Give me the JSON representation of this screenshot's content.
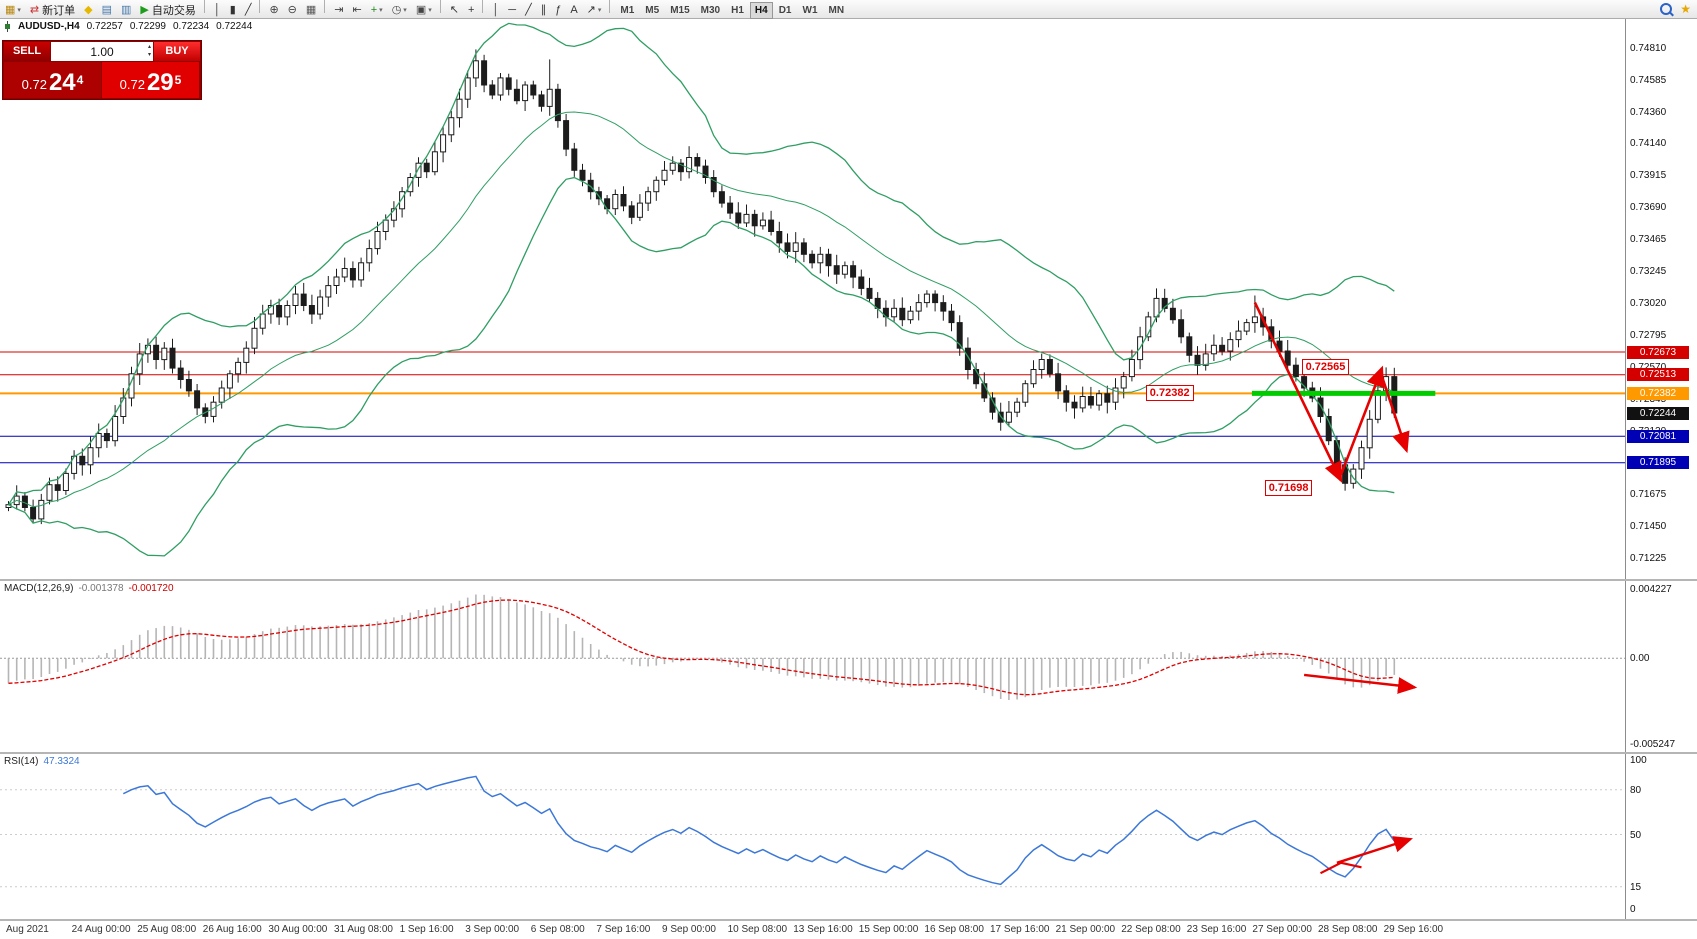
{
  "header": {
    "symbol_period": "AUDUSD-,H4",
    "open": "0.72257",
    "high": "0.72299",
    "low": "0.72234",
    "close": "0.72244"
  },
  "trade_panel": {
    "sell_label": "SELL",
    "buy_label": "BUY",
    "volume": "1.00",
    "sell_price_main": "0.72",
    "sell_price_big": "24",
    "sell_price_sup": "4",
    "buy_price_main": "0.72",
    "buy_price_big": "29",
    "buy_price_sup": "5"
  },
  "toolbar": {
    "items": [
      {
        "name": "new-chart-button",
        "glyph": "▦",
        "color": "#b8860b",
        "caret": true
      },
      {
        "name": "new-order-button",
        "glyph": "⇄",
        "color": "#cc3333",
        "label": "新订单"
      },
      {
        "name": "metaeditor-button",
        "glyph": "◆",
        "color": "#e6b800"
      },
      {
        "name": "market-watch-button",
        "glyph": "▤",
        "color": "#4477aa"
      },
      {
        "name": "data-window-button",
        "glyph": "▥",
        "color": "#4477aa"
      },
      {
        "name": "autotrading-button",
        "glyph": "▶",
        "color": "#1e9c1e",
        "label": "自动交易"
      },
      {
        "sep": true
      },
      {
        "name": "bar-chart-button",
        "glyph": "│",
        "color": "#333"
      },
      {
        "name": "candlestick-button",
        "glyph": "▮",
        "color": "#333"
      },
      {
        "name": "line-chart-button",
        "glyph": "╱",
        "color": "#333"
      },
      {
        "sep": true
      },
      {
        "name": "zoom-in-button",
        "glyph": "⊕",
        "color": "#444"
      },
      {
        "name": "zoom-out-button",
        "glyph": "⊖",
        "color": "#444"
      },
      {
        "name": "tile-windows-button",
        "glyph": "▦",
        "color": "#555"
      },
      {
        "sep": true
      },
      {
        "name": "auto-scroll-button",
        "glyph": "⇥",
        "color": "#444"
      },
      {
        "name": "chart-shift-button",
        "glyph": "⇤",
        "color": "#444"
      },
      {
        "name": "indicators-button",
        "glyph": "+",
        "color": "#1e8a1e",
        "caret": true
      },
      {
        "name": "periods-button",
        "glyph": "◷",
        "color": "#444",
        "caret": true
      },
      {
        "name": "templates-button",
        "glyph": "▣",
        "color": "#444",
        "caret": true
      },
      {
        "sep": true
      },
      {
        "name": "cursor-button",
        "glyph": "↖",
        "color": "#333"
      },
      {
        "name": "crosshair-button",
        "glyph": "+",
        "color": "#333"
      },
      {
        "sep": true
      },
      {
        "name": "vertical-line-button",
        "glyph": "│",
        "color": "#333"
      },
      {
        "name": "horizontal-line-button",
        "glyph": "─",
        "color": "#333"
      },
      {
        "name": "trendline-button",
        "glyph": "╱",
        "color": "#333"
      },
      {
        "name": "channel-button",
        "glyph": "∥",
        "color": "#333"
      },
      {
        "name": "fibonacci-button",
        "glyph": "ƒ",
        "color": "#333"
      },
      {
        "name": "text-button",
        "glyph": "A",
        "color": "#333"
      },
      {
        "name": "arrows-button",
        "glyph": "↗",
        "color": "#333",
        "caret": true
      },
      {
        "sep": true
      }
    ],
    "timeframes": [
      {
        "label": "M1"
      },
      {
        "label": "M5"
      },
      {
        "label": "M15"
      },
      {
        "label": "M30"
      },
      {
        "label": "H1"
      },
      {
        "label": "H4",
        "active": true
      },
      {
        "label": "D1"
      },
      {
        "label": "W1"
      },
      {
        "label": "MN"
      }
    ]
  },
  "chart_data": {
    "type": "candlestick",
    "symbol": "AUDUSD-",
    "period": "H4",
    "price_axis": {
      "ticks": [
        0.7481,
        0.74585,
        0.7436,
        0.7414,
        0.73915,
        0.7369,
        0.73465,
        0.73245,
        0.7302,
        0.72795,
        0.7257,
        0.72345,
        0.7212,
        0.71895,
        0.71675,
        0.7145,
        0.71225
      ],
      "current": 0.72244
    },
    "current_badge": {
      "price": 0.72244,
      "text": "0.72244",
      "bg": "#111111"
    },
    "candles": {
      "first_open": 0.7158,
      "closes": [
        0.716,
        0.7166,
        0.7158,
        0.715,
        0.7163,
        0.7174,
        0.717,
        0.7182,
        0.7194,
        0.7188,
        0.72,
        0.721,
        0.7205,
        0.7222,
        0.7235,
        0.7252,
        0.7266,
        0.7272,
        0.7262,
        0.727,
        0.7256,
        0.7248,
        0.724,
        0.7228,
        0.7222,
        0.7232,
        0.7242,
        0.7252,
        0.726,
        0.727,
        0.7284,
        0.7294,
        0.73,
        0.7292,
        0.73,
        0.7308,
        0.73,
        0.7294,
        0.7306,
        0.7314,
        0.732,
        0.7326,
        0.7318,
        0.733,
        0.734,
        0.7352,
        0.736,
        0.7368,
        0.738,
        0.739,
        0.74,
        0.7394,
        0.7408,
        0.742,
        0.7432,
        0.7445,
        0.746,
        0.7472,
        0.7455,
        0.7448,
        0.746,
        0.7452,
        0.7444,
        0.7455,
        0.7448,
        0.744,
        0.7452,
        0.743,
        0.741,
        0.7395,
        0.7388,
        0.738,
        0.7375,
        0.7368,
        0.7378,
        0.737,
        0.7362,
        0.7372,
        0.738,
        0.7388,
        0.7395,
        0.74,
        0.7394,
        0.7404,
        0.7398,
        0.739,
        0.738,
        0.7372,
        0.7365,
        0.7358,
        0.7364,
        0.7356,
        0.736,
        0.7352,
        0.7344,
        0.7338,
        0.7344,
        0.7336,
        0.733,
        0.7336,
        0.7328,
        0.7322,
        0.7328,
        0.732,
        0.7312,
        0.7305,
        0.7298,
        0.7292,
        0.7298,
        0.729,
        0.7296,
        0.7302,
        0.7308,
        0.7302,
        0.7296,
        0.7288,
        0.727,
        0.7255,
        0.7245,
        0.7235,
        0.7225,
        0.7218,
        0.7225,
        0.7232,
        0.7245,
        0.7255,
        0.7262,
        0.7252,
        0.724,
        0.7232,
        0.7228,
        0.7236,
        0.723,
        0.7238,
        0.7232,
        0.7242,
        0.725,
        0.7262,
        0.7278,
        0.7292,
        0.7305,
        0.7298,
        0.729,
        0.7278,
        0.7265,
        0.7258,
        0.7266,
        0.7272,
        0.7268,
        0.7276,
        0.7282,
        0.7288,
        0.7292,
        0.7285,
        0.7275,
        0.7268,
        0.7258,
        0.725,
        0.7242,
        0.7235,
        0.7222,
        0.7205,
        0.7188,
        0.7175,
        0.7185,
        0.72,
        0.722,
        0.724,
        0.725,
        0.72244
      ],
      "wick_high_overrides": {
        "57": 0.748,
        "66": 0.7473,
        "83": 0.7412,
        "140": 0.7312,
        "152": 0.7307,
        "168": 0.72565
      },
      "wick_low_overrides": {
        "3": 0.7147,
        "121": 0.7212,
        "163": 0.71698
      }
    },
    "indicators": {
      "bollinger": {
        "period": 20,
        "deviations": 2,
        "color": "#2f9e63"
      },
      "macd": {
        "fast": 12,
        "slow": 26,
        "signal": 9,
        "label": "MACD(12,26,9)",
        "value_main": "-0.001378",
        "value_signal": "-0.001720",
        "axis_ticks": [
          {
            "label": "0.004227",
            "value": 0.004227
          },
          {
            "label": "0.00",
            "value": 0
          },
          {
            "label": "-0.005247",
            "value": -0.005247
          }
        ]
      },
      "rsi": {
        "period": 14,
        "label": "RSI(14)",
        "value": "47.3324",
        "axis_ticks": [
          {
            "label": "100",
            "value": 100
          },
          {
            "label": "80",
            "value": 80
          },
          {
            "label": "50",
            "value": 50
          },
          {
            "label": "15",
            "value": 15
          },
          {
            "label": "0",
            "value": 0
          }
        ]
      }
    },
    "levels": [
      {
        "price": 0.72673,
        "color": "#d40000",
        "badge": "0.72673",
        "width": 1
      },
      {
        "price": 0.72513,
        "color": "#d40000",
        "badge": "0.72513",
        "width": 1
      },
      {
        "price": 0.72382,
        "color": "#ff9900",
        "badge": "0.72382",
        "width": 2
      },
      {
        "price": 0.72081,
        "color": "#0000b4",
        "badge": "0.72081",
        "width": 1
      },
      {
        "price": 0.71895,
        "color": "#0000b4",
        "badge": "0.71895",
        "width": 1
      }
    ],
    "annotations": {
      "price_labels": [
        {
          "text": "0.72565",
          "bar": 158,
          "price": 0.72565
        },
        {
          "text": "0.72382",
          "bar": 139,
          "price": 0.72382
        },
        {
          "text": "0.71698",
          "bar": 153.5,
          "price": 0.7172
        }
      ],
      "green_line": {
        "price": 0.72382,
        "bar_start": 152,
        "bar_end": 174,
        "color": "#00cc00"
      },
      "arrows_main": [
        [
          152,
          0.7302,
          162.5,
          0.7177
        ],
        [
          162.5,
          0.7181,
          167.5,
          0.7256
        ],
        [
          167.5,
          0.725,
          170.5,
          0.7198
        ]
      ],
      "arrow_macd": [
        158,
        -0.0012,
        171.5,
        -0.0021
      ],
      "arrow_rsi": [
        162,
        31,
        171,
        47
      ],
      "rsi_hook": [
        [
          160,
          24
        ],
        [
          162.5,
          31
        ],
        [
          165,
          28
        ]
      ],
      "arrow_color": "#e60000"
    },
    "time_axis": {
      "bar_step": 8,
      "labels": [
        "Aug 2021",
        "24 Aug 00:00",
        "25 Aug 08:00",
        "26 Aug 16:00",
        "30 Aug 00:00",
        "31 Aug 08:00",
        "1 Sep 16:00",
        "3 Sep 00:00",
        "6 Sep 08:00",
        "7 Sep 16:00",
        "9 Sep 00:00",
        "10 Sep 08:00",
        "13 Sep 16:00",
        "15 Sep 00:00",
        "16 Sep 08:00",
        "17 Sep 16:00",
        "21 Sep 00:00",
        "22 Sep 08:00",
        "23 Sep 16:00",
        "27 Sep 00:00",
        "28 Sep 08:00",
        "29 Sep 16:00"
      ]
    }
  }
}
